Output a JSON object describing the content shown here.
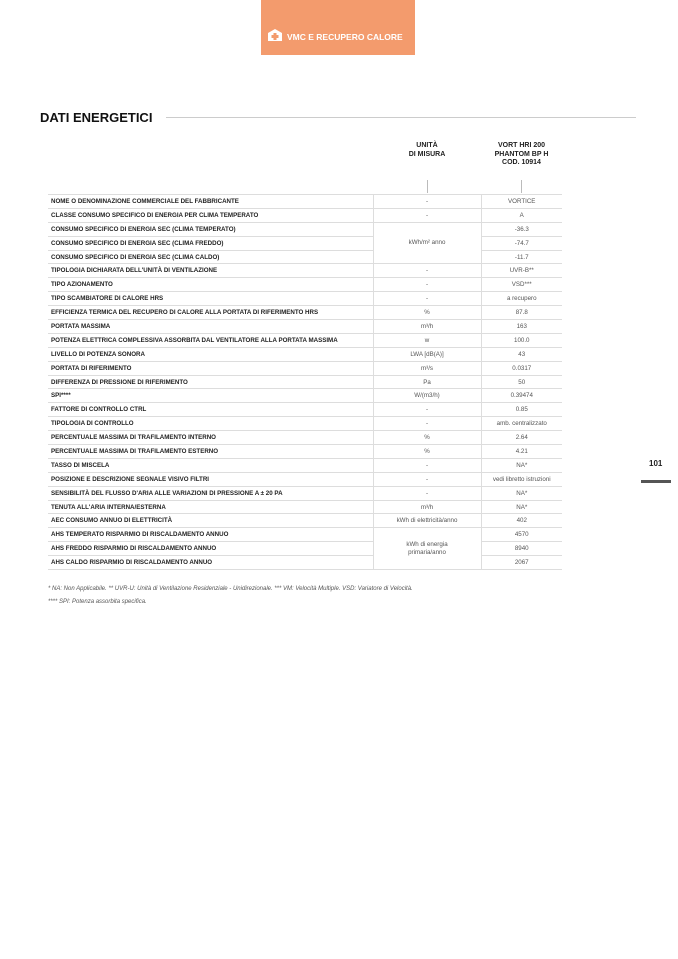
{
  "banner": {
    "label": "VMC E RECUPERO CALORE",
    "icon": "house-plus-icon",
    "color": "#f39b6d"
  },
  "section_title": "DATI ENERGETICI",
  "columns": {
    "unit": [
      "UNITÀ",
      "DI MISURA"
    ],
    "model": [
      "VORT HRI 200",
      "PHANTOM BP H",
      "COD. 10914"
    ]
  },
  "rows": [
    {
      "label": "NOME O DENOMINAZIONE COMMERCIALE DEL FABBRICANTE",
      "unit": "-",
      "value": "VORTICE"
    },
    {
      "label": "CLASSE CONSUMO SPECIFICO DI ENERGIA PER CLIMA TEMPERATO",
      "unit": "-",
      "value": "A"
    },
    {
      "label": "CONSUMO SPECIFICO DI ENERGIA SEC (CLIMA TEMPERATO)",
      "unit": "kWh/m² anno",
      "value": "-36.3"
    },
    {
      "label": "CONSUMO SPECIFICO DI ENERGIA SEC (CLIMA FREDDO)",
      "unit": "",
      "value": "-74.7"
    },
    {
      "label": "CONSUMO SPECIFICO DI ENERGIA SEC (CLIMA CALDO)",
      "unit": "",
      "value": "-11.7"
    },
    {
      "label": "TIPOLOGIA DICHIARATA DELL'UNITÀ DI VENTILAZIONE",
      "unit": "-",
      "value": "UVR-B**"
    },
    {
      "label": "TIPO AZIONAMENTO",
      "unit": "-",
      "value": "VSD***"
    },
    {
      "label": "TIPO SCAMBIATORE DI CALORE HRS",
      "unit": "-",
      "value": "a recupero"
    },
    {
      "label": "EFFICIENZA TERMICA DEL RECUPERO DI CALORE ALLA PORTATA DI RIFERIMENTO HRS",
      "unit": "%",
      "value": "87.8"
    },
    {
      "label": "PORTATA MASSIMA",
      "unit": "m³/h",
      "value": "163"
    },
    {
      "label": "POTENZA ELETTRICA COMPLESSIVA ASSORBITA DAL VENTILATORE ALLA PORTATA MASSIMA",
      "unit": "w",
      "value": "100.0"
    },
    {
      "label": "LIVELLO DI POTENZA SONORA",
      "unit": "LWA [dB(A)]",
      "value": "43"
    },
    {
      "label": "PORTATA DI RIFERIMENTO",
      "unit": "m³/s",
      "value": "0.0317"
    },
    {
      "label": "DIFFERENZA DI PRESSIONE DI RIFERIMENTO",
      "unit": "Pa",
      "value": "50"
    },
    {
      "label": "SPI****",
      "unit": "W/(m3/h)",
      "value": "0.39474"
    },
    {
      "label": "FATTORE DI CONTROLLO CTRL",
      "unit": "-",
      "value": "0.85"
    },
    {
      "label": "TIPOLOGIA DI CONTROLLO",
      "unit": "-",
      "value": "amb. centralizzato"
    },
    {
      "label": "PERCENTUALE MASSIMA DI TRAFILAMENTO INTERNO",
      "unit": "%",
      "value": "2.64"
    },
    {
      "label": "PERCENTUALE MASSIMA DI TRAFILAMENTO ESTERNO",
      "unit": "%",
      "value": "4.21"
    },
    {
      "label": "TASSO DI MISCELA",
      "unit": "-",
      "value": "NA*"
    },
    {
      "label": "POSIZIONE E DESCRIZIONE SEGNALE VISIVO FILTRI",
      "unit": "-",
      "value": "vedi libretto istruzioni"
    },
    {
      "label": "SENSIBILITÀ DEL FLUSSO D'ARIA ALLE VARIAZIONI DI PRESSIONE A ± 20 PA",
      "unit": "-",
      "value": "NA*"
    },
    {
      "label": "TENUTA ALL'ARIA INTERNA/ESTERNA",
      "unit": "m³/h",
      "value": "NA*"
    },
    {
      "label": "AEC CONSUMO ANNUO DI ELETTRICITÀ",
      "unit": "kWh di elettricità/anno",
      "value": "402"
    },
    {
      "label": "AHS TEMPERATO RISPARMIO DI RISCALDAMENTO ANNUO",
      "unit": "kWh di energia primaria/anno",
      "value": "4570"
    },
    {
      "label": "AHS FREDDO RISPARMIO DI RISCALDAMENTO ANNUO",
      "unit": "",
      "value": "8940"
    },
    {
      "label": "AHS CALDO RISPARMIO DI RISCALDAMENTO ANNUO",
      "unit": "",
      "value": "2067"
    }
  ],
  "footnotes": [
    "* NA: Non Applicabile. ** UVR-U: Unità di Ventilazione Residenziale - Unidirezionale. *** VM: Velocità Multiple. VSD: Variatore di Velocità.",
    "**** SPI: Potenza assorbita specifica."
  ],
  "page_number": "101"
}
